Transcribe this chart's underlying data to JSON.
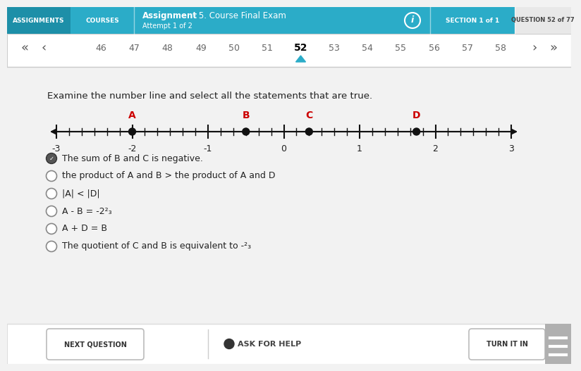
{
  "bg_color": "#f2f2f2",
  "header_bg": "#2bacc8",
  "header_dark_bg": "#1d8fa8",
  "header_gray_bg": "#e8e8e8",
  "nav_bg": "#ffffff",
  "assignments_tab_bg": "#1d8fa8",
  "courses_tab_bg": "#2bacc8",
  "section_tab_bg": "#2bacc8",
  "header_text_bold": "Assignment",
  "header_text_rest": " - 5. Course Final Exam",
  "header_subtext": "Attempt 1 of 2",
  "section_text": "SECTION 1 of 1",
  "question_text": "QUESTION 52 of 77",
  "nav_numbers": [
    "46",
    "47",
    "48",
    "49",
    "50",
    "51",
    "52",
    "53",
    "54",
    "55",
    "56",
    "57",
    "58"
  ],
  "question_prompt": "Examine the number line and select all the statements that are true.",
  "number_line_min": -3,
  "number_line_max": 3,
  "points": {
    "A": -2.0,
    "B": -0.5,
    "C": 0.333,
    "D": 1.75
  },
  "point_color": "#111111",
  "point_label_color": "#cc0000",
  "arrow_color": "#111111",
  "statements": [
    {
      "text": "The sum of B and C is negative.",
      "checked": true
    },
    {
      "text": "the product of A and B > the product of A and D",
      "checked": false
    },
    {
      "text": "|A| < |D|",
      "checked": false
    },
    {
      "text": "A - B = -2²₃",
      "checked": false
    },
    {
      "text": "A + D = B",
      "checked": false
    },
    {
      "text": "The quotient of C and B is equivalent to -²₃",
      "checked": false
    }
  ],
  "checked_icon_color": "#555555",
  "radio_border": "#888888",
  "footer_bg": "#ffffff",
  "footer_border": "#dddddd",
  "next_btn_text": "NEXT QUESTION",
  "ask_help_text": "ASK FOR HELP",
  "turn_in_text": "TURN IT IN",
  "hamburger_bg": "#b0b0b0",
  "divider_color": "#cccccc"
}
